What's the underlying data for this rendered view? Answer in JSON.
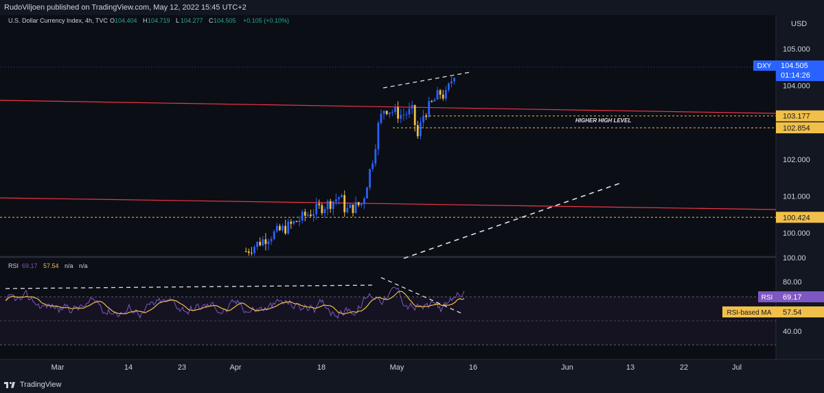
{
  "header": {
    "published_by": "RudoViljoen published on TradingView.com, May 12, 2022 15:45 UTC+2"
  },
  "symbol": {
    "name": "U.S. Dollar Currency Index, 4h, TVC",
    "ohlc": [
      {
        "label": "O",
        "value": "104.404"
      },
      {
        "label": "H",
        "value": "104.719"
      },
      {
        "label": "L",
        "value": "104.277"
      },
      {
        "label": "C",
        "value": "104.505"
      }
    ],
    "change": "+0.105 (+0.10%)"
  },
  "currency_label": "USD",
  "price_badge": {
    "ticker": "DXY",
    "price": "104.505",
    "countdown": "01:14:26"
  },
  "annotation": "HIGHER HIGH LEVEL",
  "indicator": {
    "name": "RSI",
    "values": [
      "69.17",
      "57.54",
      "n/a",
      "n/a"
    ],
    "rsi_badge": {
      "label": "RSI",
      "value": "69.17"
    },
    "ma_badge": {
      "label": "RSI-based MA",
      "value": "57.54"
    }
  },
  "footer": {
    "brand": "TradingView"
  },
  "colors": {
    "background": "#131722",
    "candle_up": "#2962ff",
    "candle_down": "#f0c04a",
    "trend_line": "#f23645",
    "rsi_line": "#7e57c2",
    "rsi_ma": "#f0c04a",
    "levels": "#f0c04a",
    "badge": "#2962ff",
    "rsi_badge": "#7e57c2",
    "ma_badge": "#f0c04a"
  },
  "chart_data": {
    "type": "candlestick",
    "price_axis": {
      "ticks": [
        100.0,
        101.0,
        102.0,
        104.0,
        105.0
      ],
      "range": [
        99.3,
        105.8
      ]
    },
    "time_axis": {
      "labels": [
        "Mar",
        "14",
        "23",
        "Apr",
        "18",
        "May",
        "16",
        "Jun",
        "13",
        "22",
        "Jul"
      ]
    },
    "horizontal_levels": [
      {
        "label": "103.177",
        "value": 103.177
      },
      {
        "label": "102.854",
        "value": 102.854
      },
      {
        "label": "100.424",
        "value": 100.424
      }
    ],
    "price_path": [
      {
        "date": "2022-04-04",
        "price": 99.5
      },
      {
        "date": "2022-04-08",
        "price": 99.9
      },
      {
        "date": "2022-04-12",
        "price": 100.2
      },
      {
        "date": "2022-04-15",
        "price": 100.5
      },
      {
        "date": "2022-04-19",
        "price": 100.8
      },
      {
        "date": "2022-04-21",
        "price": 101.0
      },
      {
        "date": "2022-04-22",
        "price": 100.6
      },
      {
        "date": "2022-04-25",
        "price": 100.8
      },
      {
        "date": "2022-04-27",
        "price": 102.1
      },
      {
        "date": "2022-04-28",
        "price": 103.0
      },
      {
        "date": "2022-04-29",
        "price": 103.4
      },
      {
        "date": "2022-05-02",
        "price": 103.2
      },
      {
        "date": "2022-05-04",
        "price": 103.3
      },
      {
        "date": "2022-05-05",
        "price": 102.6
      },
      {
        "date": "2022-05-06",
        "price": 103.2
      },
      {
        "date": "2022-05-09",
        "price": 103.8
      },
      {
        "date": "2022-05-10",
        "price": 103.7
      },
      {
        "date": "2022-05-11",
        "price": 104.1
      },
      {
        "date": "2022-05-12",
        "price": 104.505
      }
    ],
    "rsi_axis": {
      "ticks": [
        100.0,
        80.0,
        40.0
      ],
      "range": [
        0,
        100
      ]
    },
    "rsi": {
      "last": 69.17,
      "ma_last": 57.54
    }
  }
}
